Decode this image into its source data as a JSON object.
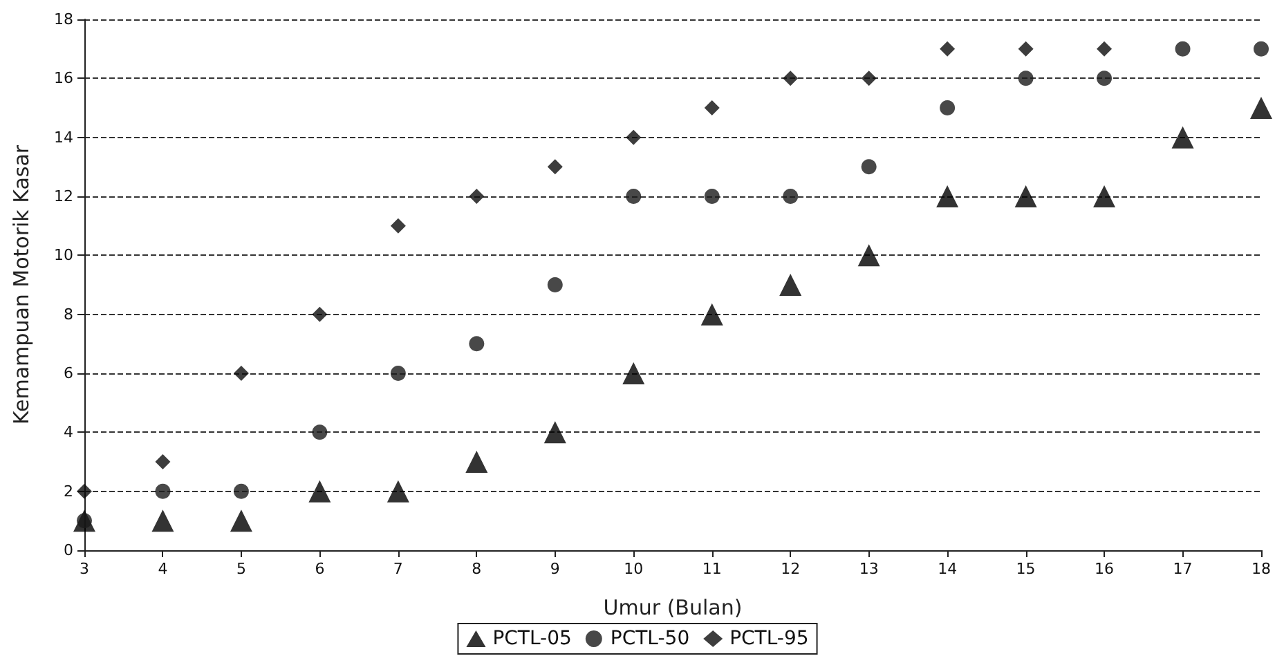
{
  "chart_data": {
    "type": "scatter",
    "xlabel": "Umur (Bulan)",
    "ylabel": "Kemampuan Motorik Kasar",
    "x": [
      3,
      4,
      5,
      6,
      7,
      8,
      9,
      10,
      11,
      12,
      13,
      14,
      15,
      16,
      17,
      18
    ],
    "series": [
      {
        "name": "PCTL-05",
        "color": "#000000",
        "marker": "triangle",
        "values": [
          1,
          1,
          1,
          2,
          2,
          3,
          4,
          6,
          8,
          9,
          10,
          12,
          12,
          12,
          14,
          15
        ]
      },
      {
        "name": "PCTL-50",
        "color": "#1a1a1a",
        "marker": "circle",
        "values": [
          1,
          2,
          2,
          4,
          6,
          7,
          9,
          12,
          12,
          12,
          13,
          15,
          16,
          16,
          17,
          17
        ]
      },
      {
        "name": "PCTL-95",
        "color": "#0d0d0d",
        "marker": "diamond",
        "values": [
          2,
          3,
          6,
          8,
          11,
          12,
          13,
          14,
          15,
          16,
          16,
          17,
          17,
          17,
          null,
          null
        ]
      }
    ],
    "xlim": [
      3,
      18
    ],
    "xticks": [
      3,
      4,
      5,
      6,
      7,
      8,
      9,
      10,
      11,
      12,
      13,
      14,
      15,
      16,
      17,
      18
    ],
    "ylim": [
      0,
      18
    ],
    "yticks": [
      0,
      2,
      4,
      6,
      8,
      10,
      12,
      14,
      16,
      18
    ],
    "grid": "y",
    "legend": "bottom"
  }
}
